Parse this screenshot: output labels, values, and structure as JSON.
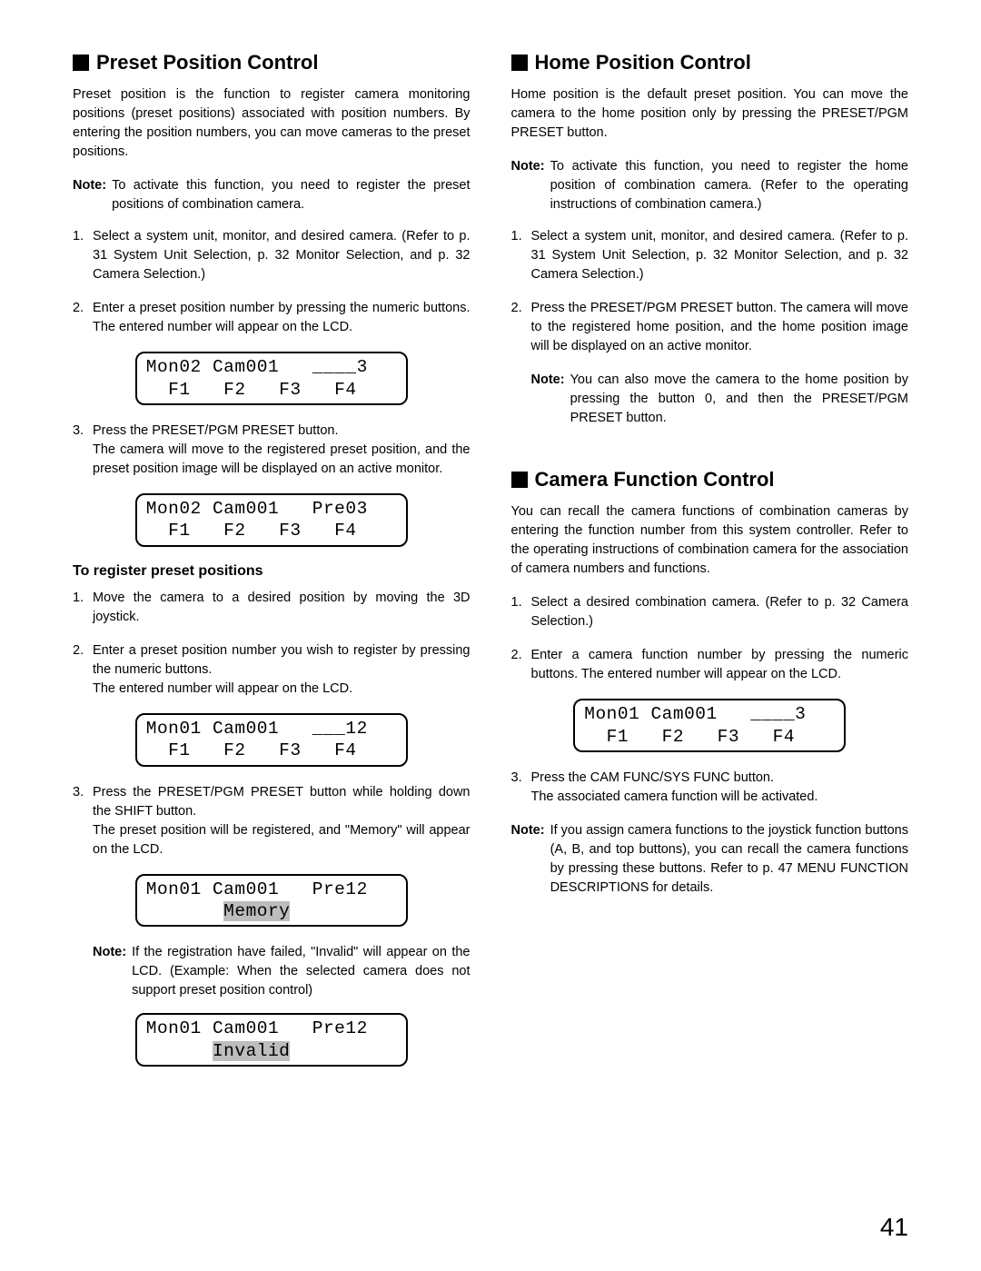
{
  "page_number": "41",
  "left": {
    "preset": {
      "heading": "Preset Position Control",
      "intro": "Preset position is the function to register camera monitoring positions (preset positions) associated with position numbers. By entering the position numbers, you can move cameras to the preset positions.",
      "note": {
        "label": "Note:",
        "body": "To activate this function, you need to register the preset positions of combination camera."
      },
      "steps": [
        "Select a system unit, monitor, and desired camera. (Refer to p. 31 System Unit Selection, p. 32 Monitor Selection, and p. 32 Camera Selection.)",
        "Enter a preset position number by pressing the numeric buttons. The entered number will appear on the LCD.",
        "Press the PRESET/PGM PRESET button.\nThe camera will move to the registered preset position, and the preset position image will be displayed on an active monitor."
      ],
      "lcd1": {
        "line1": "Mon02 Cam001   ____3",
        "line2": "  F1   F2   F3   F4"
      },
      "lcd2": {
        "line1": "Mon02 Cam001   Pre03",
        "line2": "  F1   F2   F3   F4"
      }
    },
    "register": {
      "heading": "To register preset positions",
      "steps": [
        "Move the camera to a desired position by moving the 3D joystick.",
        "Enter a preset position number you wish to register by pressing the numeric buttons.\nThe entered number will appear on the LCD.",
        "Press the PRESET/PGM PRESET button while holding down the SHIFT button.\nThe preset position will be registered, and \"Memory\" will appear on the LCD."
      ],
      "lcd1": {
        "line1": "Mon01 Cam001   ___12",
        "line2": "  F1   F2   F3   F4"
      },
      "lcd2": {
        "line1_a": "Mon01 Cam001   Pre12",
        "line2_a": "       ",
        "hl": "Memory"
      },
      "note": {
        "label": "Note:",
        "body": "If the registration have failed, \"Invalid\" will appear on the LCD. (Example: When the selected camera does not support preset position control)"
      },
      "lcd3": {
        "line1_a": "Mon01 Cam001   Pre12",
        "line2_a": "      ",
        "hl": "Invalid"
      }
    }
  },
  "right": {
    "home": {
      "heading": "Home Position Control",
      "intro": "Home position is the default preset position. You can move the camera to the home position only by pressing the PRESET/PGM PRESET button.",
      "note": {
        "label": "Note:",
        "body": "To activate this function, you need to register the home position of combination camera. (Refer to the operating instructions of combination camera.)"
      },
      "steps": [
        "Select a system unit, monitor, and desired camera. (Refer to p. 31 System Unit Selection, p. 32 Monitor Selection, and p. 32 Camera Selection.)",
        "Press the PRESET/PGM PRESET button. The camera will move to the registered home position, and the home position image will be displayed on an active monitor."
      ],
      "subnote": {
        "label": "Note:",
        "body": "You can also move the camera to the home position by pressing the button 0, and then the PRESET/PGM PRESET button."
      }
    },
    "camfunc": {
      "heading": "Camera Function Control",
      "intro": "You can recall the camera functions of combination cameras by entering the function number from this system controller. Refer to the operating instructions of combination camera for the association of camera numbers and functions.",
      "steps": [
        "Select a desired combination camera. (Refer to p. 32 Camera Selection.)",
        "Enter a camera function number by pressing the numeric buttons. The entered number will appear on the LCD.",
        "Press the CAM FUNC/SYS FUNC button.\nThe associated camera function will be activated."
      ],
      "lcd": {
        "line1": "Mon01 Cam001   ____3",
        "line2": "  F1   F2   F3   F4"
      },
      "note": {
        "label": "Note:",
        "body": "If you assign camera functions to the joystick function buttons (A, B, and top buttons), you can recall the camera functions by pressing these buttons. Refer to p. 47 MENU FUNCTION DESCRIPTIONS for details."
      }
    }
  }
}
